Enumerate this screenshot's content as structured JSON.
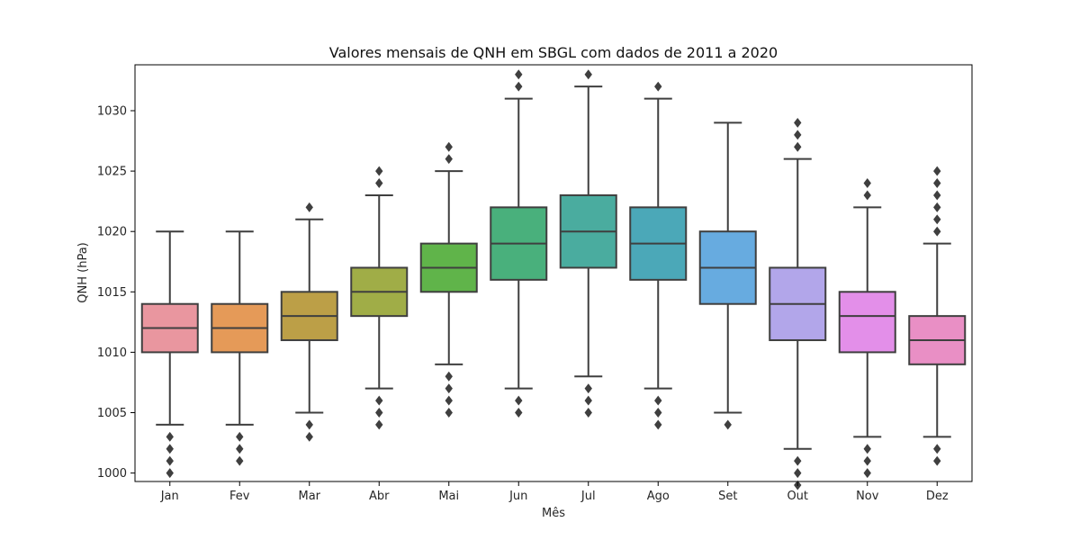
{
  "chart_data": {
    "type": "box",
    "title": "Valores mensais de QNH em SBGL com dados de 2011 a 2020",
    "xlabel": "Mês",
    "ylabel": "QNH (hPa)",
    "ylim": [
      999.3,
      1033.8
    ],
    "yticks": [
      1000,
      1005,
      1010,
      1015,
      1020,
      1025,
      1030
    ],
    "grid": false,
    "legend": "none",
    "categories": [
      "Jan",
      "Fev",
      "Mar",
      "Abr",
      "Mai",
      "Jun",
      "Jul",
      "Ago",
      "Set",
      "Out",
      "Nov",
      "Dez"
    ],
    "boxes": [
      {
        "category": "Jan",
        "whisker_low": 1004,
        "q1": 1010,
        "median": 1012,
        "q3": 1014,
        "whisker_high": 1020,
        "outliers": [
          1000,
          1001,
          1002,
          1003
        ],
        "color": "#e9969f"
      },
      {
        "category": "Fev",
        "whisker_low": 1004,
        "q1": 1010,
        "median": 1012,
        "q3": 1014,
        "whisker_high": 1020,
        "outliers": [
          1001,
          1002,
          1003
        ],
        "color": "#e59a58"
      },
      {
        "category": "Mar",
        "whisker_low": 1005,
        "q1": 1011,
        "median": 1013,
        "q3": 1015,
        "whisker_high": 1021,
        "outliers": [
          1003,
          1004,
          1022
        ],
        "color": "#bc9f47"
      },
      {
        "category": "Abr",
        "whisker_low": 1007,
        "q1": 1013,
        "median": 1015,
        "q3": 1017,
        "whisker_high": 1023,
        "outliers": [
          1004,
          1005,
          1006,
          1024,
          1025
        ],
        "color": "#a0ad47"
      },
      {
        "category": "Mai",
        "whisker_low": 1009,
        "q1": 1015,
        "median": 1017,
        "q3": 1019,
        "whisker_high": 1025,
        "outliers": [
          1005,
          1006,
          1007,
          1008,
          1026,
          1027
        ],
        "color": "#60b44a"
      },
      {
        "category": "Jun",
        "whisker_low": 1007,
        "q1": 1016,
        "median": 1019,
        "q3": 1022,
        "whisker_high": 1031,
        "outliers": [
          1005,
          1006,
          1032,
          1033
        ],
        "color": "#49b07c"
      },
      {
        "category": "Jul",
        "whisker_low": 1008,
        "q1": 1017,
        "median": 1020,
        "q3": 1023,
        "whisker_high": 1032,
        "outliers": [
          1005,
          1006,
          1007,
          1033
        ],
        "color": "#4aac9f"
      },
      {
        "category": "Ago",
        "whisker_low": 1007,
        "q1": 1016,
        "median": 1019,
        "q3": 1022,
        "whisker_high": 1031,
        "outliers": [
          1004,
          1005,
          1006,
          1032
        ],
        "color": "#4ba8b8"
      },
      {
        "category": "Set",
        "whisker_low": 1005,
        "q1": 1014,
        "median": 1017,
        "q3": 1020,
        "whisker_high": 1029,
        "outliers": [
          1004
        ],
        "color": "#67abe0"
      },
      {
        "category": "Out",
        "whisker_low": 1002,
        "q1": 1011,
        "median": 1014,
        "q3": 1017,
        "whisker_high": 1026,
        "outliers": [
          999,
          1000,
          1001,
          1027,
          1028,
          1029
        ],
        "color": "#b2a6ea"
      },
      {
        "category": "Nov",
        "whisker_low": 1003,
        "q1": 1010,
        "median": 1013,
        "q3": 1015,
        "whisker_high": 1022,
        "outliers": [
          1000,
          1001,
          1002,
          1023,
          1024
        ],
        "color": "#e38fe9"
      },
      {
        "category": "Dez",
        "whisker_low": 1003,
        "q1": 1009,
        "median": 1011,
        "q3": 1013,
        "whisker_high": 1019,
        "outliers": [
          1001,
          1002,
          1020,
          1021,
          1022,
          1023,
          1024,
          1025
        ],
        "color": "#e98fc5"
      }
    ]
  }
}
